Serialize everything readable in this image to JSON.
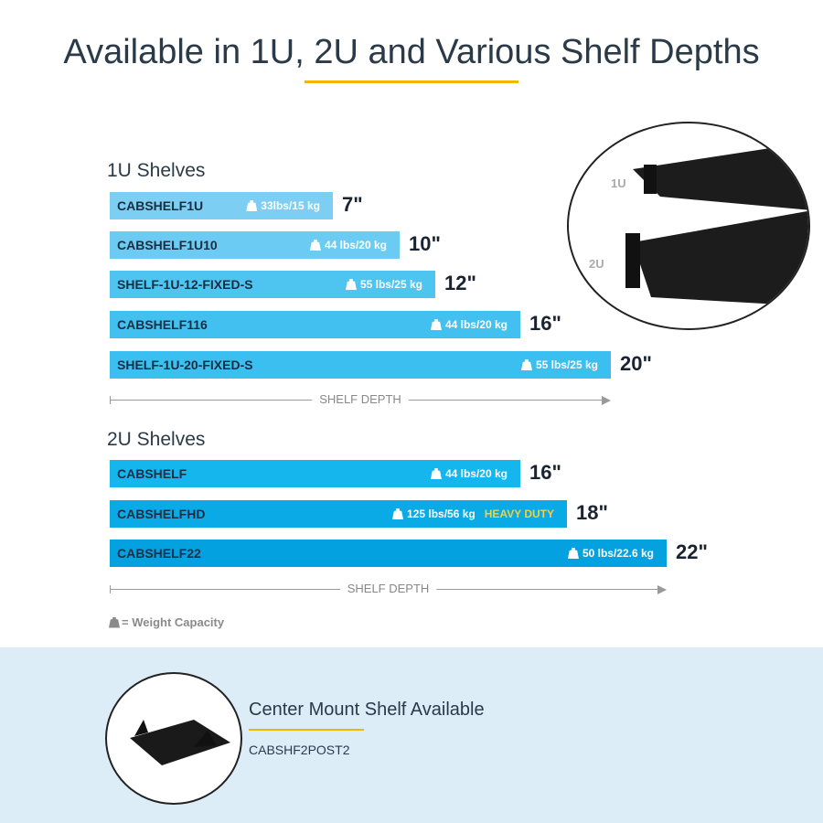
{
  "title": "Available in 1U, 2U and Various Shelf Depths",
  "colors": {
    "accent": "#f2b705",
    "band": "#dcedf8",
    "heavy_duty": "#f4d03f"
  },
  "sections": [
    {
      "label": "1U Shelves",
      "axis_label": "SHELF DEPTH",
      "items": [
        {
          "sku": "CABSHELF1U",
          "capacity": "33lbs/15 kg",
          "depth": "7\"",
          "color": "#7ccff3"
        },
        {
          "sku": "CABSHELF1U10",
          "capacity": "44 lbs/20 kg",
          "depth": "10\"",
          "color": "#6ccbf2"
        },
        {
          "sku": "SHELF-1U-12-FIXED-S",
          "capacity": "55 lbs/25 kg",
          "depth": "12\"",
          "color": "#4ec4f1"
        },
        {
          "sku": "CABSHELF116",
          "capacity": "44 lbs/20 kg",
          "depth": "16\"",
          "color": "#42c1f0"
        },
        {
          "sku": "SHELF-1U-20-FIXED-S",
          "capacity": "55 lbs/25 kg",
          "depth": "20\"",
          "color": "#3bbff0"
        }
      ]
    },
    {
      "label": "2U Shelves",
      "axis_label": "SHELF DEPTH",
      "items": [
        {
          "sku": "CABSHELF",
          "capacity": "44 lbs/20 kg",
          "depth": "16\"",
          "color": "#15b5ee"
        },
        {
          "sku": "CABSHELFHD",
          "capacity": "125 lbs/56 kg",
          "badge": "HEAVY DUTY",
          "depth": "18\"",
          "color": "#09aae6"
        },
        {
          "sku": "CABSHELF22",
          "capacity": "50 lbs/22.6 kg",
          "depth": "22\"",
          "color": "#03a1e0"
        }
      ]
    }
  ],
  "illustration": {
    "label_1u": "1U",
    "label_2u": "2U"
  },
  "legend": "= Weight Capacity",
  "center_mount": {
    "title": "Center Mount Shelf Available",
    "sku": "CABSHF2POST2"
  }
}
